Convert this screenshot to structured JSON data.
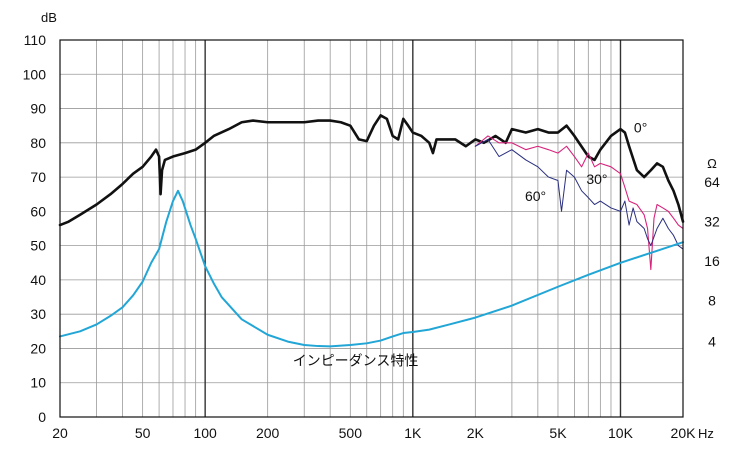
{
  "chart_data": {
    "type": "line",
    "title": "",
    "xlabel": "Hz",
    "ylabel": "dB",
    "y2label": "Ω",
    "xscale": "log",
    "xlim": [
      20,
      20000
    ],
    "ylim": [
      0,
      110
    ],
    "grid": true,
    "x_ticks": [
      {
        "value": 20,
        "label": "20"
      },
      {
        "value": 50,
        "label": "50"
      },
      {
        "value": 100,
        "label": "100"
      },
      {
        "value": 200,
        "label": "200"
      },
      {
        "value": 500,
        "label": "500"
      },
      {
        "value": 1000,
        "label": "1K"
      },
      {
        "value": 2000,
        "label": "2K"
      },
      {
        "value": 5000,
        "label": "5K"
      },
      {
        "value": 10000,
        "label": "10K"
      },
      {
        "value": 20000,
        "label": "20K"
      }
    ],
    "y_ticks": [
      0,
      10,
      20,
      30,
      40,
      50,
      60,
      70,
      80,
      90,
      100,
      110
    ],
    "y2_ticks": [
      {
        "db": 22,
        "label": "4"
      },
      {
        "db": 34,
        "label": "8"
      },
      {
        "db": 45.5,
        "label": "16"
      },
      {
        "db": 57,
        "label": "32"
      },
      {
        "db": 68.5,
        "label": "64"
      }
    ],
    "series": [
      {
        "name": "0°",
        "color": "#111111",
        "width": 2.6,
        "points": [
          [
            20,
            56
          ],
          [
            22,
            57
          ],
          [
            25,
            59
          ],
          [
            30,
            62
          ],
          [
            35,
            65
          ],
          [
            40,
            68
          ],
          [
            45,
            71
          ],
          [
            50,
            73
          ],
          [
            55,
            76
          ],
          [
            58,
            78
          ],
          [
            60,
            76
          ],
          [
            61,
            65
          ],
          [
            62,
            72
          ],
          [
            64,
            75
          ],
          [
            70,
            76
          ],
          [
            80,
            77
          ],
          [
            90,
            78
          ],
          [
            100,
            80
          ],
          [
            110,
            82
          ],
          [
            130,
            84
          ],
          [
            150,
            86
          ],
          [
            170,
            86.5
          ],
          [
            200,
            86
          ],
          [
            250,
            86
          ],
          [
            300,
            86
          ],
          [
            350,
            86.5
          ],
          [
            400,
            86.5
          ],
          [
            450,
            86
          ],
          [
            500,
            85
          ],
          [
            550,
            81
          ],
          [
            600,
            80.5
          ],
          [
            650,
            85
          ],
          [
            700,
            88
          ],
          [
            750,
            87
          ],
          [
            800,
            82
          ],
          [
            850,
            81
          ],
          [
            900,
            87
          ],
          [
            950,
            85
          ],
          [
            1000,
            83
          ],
          [
            1100,
            82
          ],
          [
            1200,
            80
          ],
          [
            1250,
            77
          ],
          [
            1300,
            81
          ],
          [
            1400,
            81
          ],
          [
            1600,
            81
          ],
          [
            1800,
            79
          ],
          [
            2000,
            81
          ],
          [
            2200,
            80
          ],
          [
            2500,
            82
          ],
          [
            2800,
            80
          ],
          [
            3000,
            84
          ],
          [
            3500,
            83
          ],
          [
            4000,
            84
          ],
          [
            4500,
            83
          ],
          [
            5000,
            83
          ],
          [
            5500,
            85
          ],
          [
            6000,
            82
          ],
          [
            7000,
            76
          ],
          [
            7500,
            75
          ],
          [
            8000,
            78
          ],
          [
            9000,
            82
          ],
          [
            10000,
            84
          ],
          [
            10500,
            83
          ],
          [
            11000,
            79
          ],
          [
            12000,
            72
          ],
          [
            13000,
            70
          ],
          [
            14000,
            72
          ],
          [
            15000,
            74
          ],
          [
            16000,
            73
          ],
          [
            17000,
            69
          ],
          [
            18000,
            66
          ],
          [
            19000,
            62
          ],
          [
            20000,
            57
          ]
        ]
      },
      {
        "name": "30°",
        "color": "#d6247c",
        "width": 1.1,
        "points": [
          [
            2000,
            79
          ],
          [
            2300,
            82
          ],
          [
            2600,
            80
          ],
          [
            3000,
            80
          ],
          [
            3500,
            78
          ],
          [
            4000,
            79
          ],
          [
            4500,
            78
          ],
          [
            5000,
            77
          ],
          [
            5500,
            79
          ],
          [
            6000,
            76
          ],
          [
            6500,
            73
          ],
          [
            7000,
            77
          ],
          [
            7500,
            73
          ],
          [
            8000,
            74
          ],
          [
            9000,
            73
          ],
          [
            10000,
            71
          ],
          [
            10500,
            67
          ],
          [
            11000,
            63
          ],
          [
            12000,
            62
          ],
          [
            13000,
            59
          ],
          [
            13500,
            55
          ],
          [
            14000,
            43
          ],
          [
            14500,
            58
          ],
          [
            15000,
            62
          ],
          [
            16000,
            61
          ],
          [
            17000,
            60
          ],
          [
            18000,
            58
          ],
          [
            19000,
            56
          ],
          [
            20000,
            55
          ]
        ]
      },
      {
        "name": "60°",
        "color": "#2a2f7e",
        "width": 1.0,
        "points": [
          [
            2000,
            79
          ],
          [
            2300,
            81
          ],
          [
            2600,
            76
          ],
          [
            3000,
            78
          ],
          [
            3500,
            75
          ],
          [
            4000,
            73
          ],
          [
            4500,
            70
          ],
          [
            5000,
            69
          ],
          [
            5200,
            60
          ],
          [
            5500,
            72
          ],
          [
            6000,
            70
          ],
          [
            6500,
            66
          ],
          [
            7000,
            64
          ],
          [
            7500,
            62
          ],
          [
            8000,
            63
          ],
          [
            9000,
            61
          ],
          [
            10000,
            60
          ],
          [
            10500,
            63
          ],
          [
            11000,
            56
          ],
          [
            11500,
            61
          ],
          [
            12000,
            57
          ],
          [
            13000,
            55
          ],
          [
            13500,
            52
          ],
          [
            14000,
            50
          ],
          [
            15000,
            55
          ],
          [
            16000,
            58
          ],
          [
            17000,
            55
          ],
          [
            18000,
            53
          ],
          [
            19000,
            50
          ],
          [
            20000,
            49
          ]
        ]
      },
      {
        "name": "インピーダンス特性",
        "color": "#22a6d6",
        "width": 2.0,
        "points": [
          [
            20,
            23.5
          ],
          [
            25,
            25
          ],
          [
            30,
            27
          ],
          [
            35,
            29.5
          ],
          [
            40,
            32
          ],
          [
            45,
            35.5
          ],
          [
            50,
            39.5
          ],
          [
            55,
            45
          ],
          [
            60,
            49
          ],
          [
            65,
            57
          ],
          [
            70,
            63
          ],
          [
            74,
            66
          ],
          [
            78,
            63
          ],
          [
            85,
            56
          ],
          [
            90,
            52
          ],
          [
            100,
            44
          ],
          [
            110,
            39
          ],
          [
            120,
            35
          ],
          [
            150,
            28.5
          ],
          [
            200,
            24
          ],
          [
            250,
            22
          ],
          [
            300,
            21
          ],
          [
            350,
            20.7
          ],
          [
            400,
            20.6
          ],
          [
            500,
            21
          ],
          [
            600,
            21.5
          ],
          [
            700,
            22.3
          ],
          [
            800,
            23.5
          ],
          [
            900,
            24.5
          ],
          [
            1000,
            24.8
          ],
          [
            1200,
            25.5
          ],
          [
            1500,
            27
          ],
          [
            2000,
            29
          ],
          [
            3000,
            32.5
          ],
          [
            5000,
            38
          ],
          [
            7000,
            41.5
          ],
          [
            10000,
            45
          ],
          [
            15000,
            48.5
          ],
          [
            20000,
            51
          ]
        ]
      }
    ],
    "annotations": [
      {
        "text": "0°",
        "x": 12500,
        "y": 83
      },
      {
        "text": "30°",
        "x": 7700,
        "y": 68
      },
      {
        "text": "60°",
        "x": 3900,
        "y": 63
      },
      {
        "text": "インピーダンス特性",
        "x": 530,
        "y": 15
      }
    ]
  }
}
